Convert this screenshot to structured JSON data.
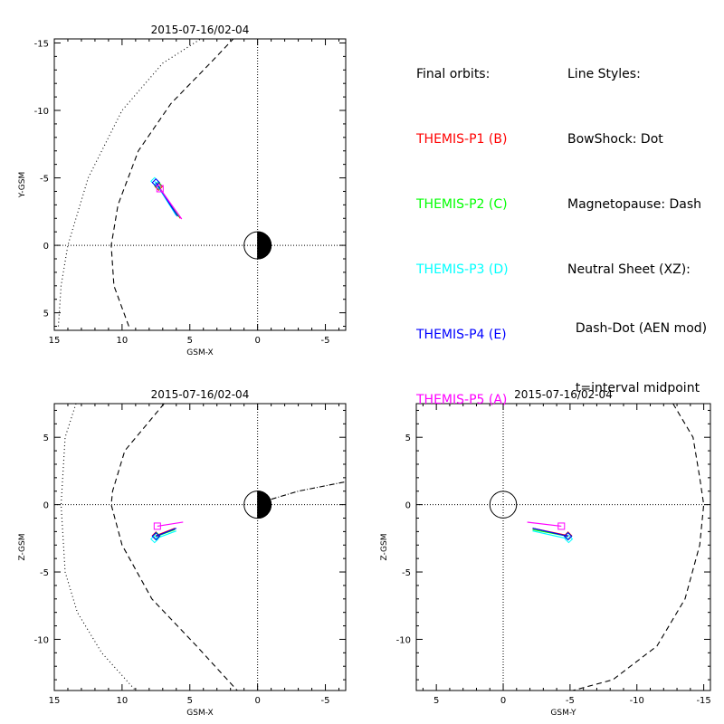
{
  "legend": {
    "orbits_title": "Final orbits:",
    "probes": [
      {
        "label": "THEMIS-P1 (B)",
        "color": "#ff0000"
      },
      {
        "label": "THEMIS-P2 (C)",
        "color": "#00ff00"
      },
      {
        "label": "THEMIS-P3 (D)",
        "color": "#00ffff"
      },
      {
        "label": "THEMIS-P4 (E)",
        "color": "#0000ff"
      },
      {
        "label": "THEMIS-P5 (A)",
        "color": "#ff00ff"
      }
    ],
    "styles_title": "Line Styles:",
    "styles": [
      "BowShock: Dot",
      "Magnetopause: Dash",
      "Neutral Sheet (XZ):",
      "  Dash-Dot (AEN mod)",
      "  t=interval midpoint"
    ]
  },
  "chart_data": [
    {
      "type": "line",
      "title": "2015-07-16/02-04",
      "xlabel": "GSM-X",
      "ylabel": "Y-GSM",
      "xlim": [
        15,
        -6.5
      ],
      "ylim": [
        6.3,
        -15.3
      ],
      "xticks": [
        15,
        10,
        5,
        0,
        -5
      ],
      "yticks": [
        -15,
        -10,
        -5,
        0,
        5
      ],
      "earth": "day-night",
      "bow_shock": {
        "x": [
          14.7,
          14.5,
          14.0,
          12.5,
          10.0,
          7.0,
          4.2
        ],
        "y": [
          6,
          3,
          0,
          -5,
          -10,
          -13.5,
          -15.3
        ]
      },
      "magnetopause": {
        "x": [
          9.5,
          10.6,
          10.8,
          10.3,
          8.8,
          6.4,
          3.5,
          1.8
        ],
        "y": [
          6,
          3,
          0,
          -3,
          -7,
          -10.5,
          -13.5,
          -15.3
        ]
      },
      "series": [
        {
          "name": "THEMIS-P1 (B)",
          "color": "#ff0000",
          "x": [
            7.3,
            5.7
          ],
          "y": [
            -4.35,
            -2.0
          ],
          "marker": "diamond"
        },
        {
          "name": "THEMIS-P2 (C)",
          "color": "#00ff00",
          "x": [
            7.35,
            5.8
          ],
          "y": [
            -4.45,
            -2.1
          ],
          "marker": "diamond"
        },
        {
          "name": "THEMIS-P3 (D)",
          "color": "#00ffff",
          "x": [
            7.6,
            6.0
          ],
          "y": [
            -4.75,
            -2.2
          ],
          "marker": "diamond"
        },
        {
          "name": "THEMIS-P4 (E)",
          "color": "#0000ff",
          "x": [
            7.5,
            5.9
          ],
          "y": [
            -4.65,
            -2.15
          ],
          "marker": "diamond"
        },
        {
          "name": "THEMIS-P5 (A)",
          "color": "#ff00ff",
          "x": [
            7.2,
            5.6
          ],
          "y": [
            -4.2,
            -1.95
          ],
          "marker": "square"
        }
      ]
    },
    {
      "type": "line",
      "title": "2015-07-16/02-04",
      "xlabel": "GSM-X",
      "ylabel": "Z-GSM",
      "xlim": [
        15,
        -6.5
      ],
      "ylim": [
        -13.8,
        7.5
      ],
      "xticks": [
        15,
        10,
        5,
        0,
        -5
      ],
      "yticks": [
        5,
        0,
        -5,
        -10
      ],
      "earth": "day-night",
      "bow_shock": {
        "x": [
          13.4,
          14.2,
          14.5,
          14.2,
          13.3,
          11.5,
          9.0
        ],
        "y": [
          7.5,
          5,
          0,
          -5,
          -8,
          -11,
          -13.8
        ]
      },
      "magnetopause": {
        "x": [
          6.9,
          9.8,
          10.7,
          10.8,
          10.0,
          7.8,
          4.5,
          1.5
        ],
        "y": [
          7.5,
          4,
          1,
          0,
          -3,
          -7,
          -10.5,
          -13.8
        ]
      },
      "neutral_sheet": {
        "x": [
          -1.0,
          -3.0,
          -5.0,
          -6.5
        ],
        "y": [
          0.4,
          1.0,
          1.4,
          1.7
        ]
      },
      "series": [
        {
          "name": "THEMIS-P1 (B)",
          "color": "#ff0000",
          "x": [
            7.5,
            6.1
          ],
          "y": [
            -2.3,
            -1.75
          ],
          "marker": "diamond"
        },
        {
          "name": "THEMIS-P2 (C)",
          "color": "#00ff00",
          "x": [
            7.45,
            6.1
          ],
          "y": [
            -2.35,
            -1.85
          ],
          "marker": "diamond"
        },
        {
          "name": "THEMIS-P3 (D)",
          "color": "#00ffff",
          "x": [
            7.6,
            6.0
          ],
          "y": [
            -2.55,
            -1.95
          ],
          "marker": "diamond"
        },
        {
          "name": "THEMIS-P4 (E)",
          "color": "#0000ff",
          "x": [
            7.5,
            6.0
          ],
          "y": [
            -2.35,
            -1.75
          ],
          "marker": "diamond"
        },
        {
          "name": "THEMIS-P5 (A)",
          "color": "#ff00ff",
          "x": [
            7.4,
            5.5
          ],
          "y": [
            -1.6,
            -1.3
          ],
          "marker": "square"
        }
      ]
    },
    {
      "type": "line",
      "title": "2015-07-16/02-04",
      "xlabel": "GSM-Y",
      "ylabel": "Z-GSM",
      "xlim": [
        6.5,
        -15.5
      ],
      "ylim": [
        -13.8,
        7.5
      ],
      "xticks": [
        5,
        0,
        -5,
        -10,
        -15
      ],
      "yticks": [
        5,
        0,
        -5,
        -10
      ],
      "earth": "outline",
      "magnetopause": {
        "x": [
          -12.7,
          -14.2,
          -14.7,
          -15.0,
          -14.7,
          -13.6,
          -11.5,
          -8.2,
          -5.2
        ],
        "y": [
          7.5,
          5,
          2,
          0,
          -3,
          -7,
          -10.5,
          -13,
          -13.8
        ]
      },
      "series": [
        {
          "name": "THEMIS-P1 (B)",
          "color": "#ff0000",
          "x": [
            -4.85,
            -2.2
          ],
          "y": [
            -2.3,
            -1.75
          ],
          "marker": "diamond"
        },
        {
          "name": "THEMIS-P2 (C)",
          "color": "#00ff00",
          "x": [
            -4.85,
            -2.2
          ],
          "y": [
            -2.35,
            -1.85
          ],
          "marker": "diamond"
        },
        {
          "name": "THEMIS-P3 (D)",
          "color": "#00ffff",
          "x": [
            -4.9,
            -2.2
          ],
          "y": [
            -2.55,
            -1.95
          ],
          "marker": "diamond"
        },
        {
          "name": "THEMIS-P4 (E)",
          "color": "#0000ff",
          "x": [
            -4.85,
            -2.2
          ],
          "y": [
            -2.35,
            -1.75
          ],
          "marker": "diamond"
        },
        {
          "name": "THEMIS-P5 (A)",
          "color": "#ff00ff",
          "x": [
            -4.35,
            -1.8
          ],
          "y": [
            -1.6,
            -1.3
          ],
          "marker": "square"
        }
      ]
    }
  ]
}
